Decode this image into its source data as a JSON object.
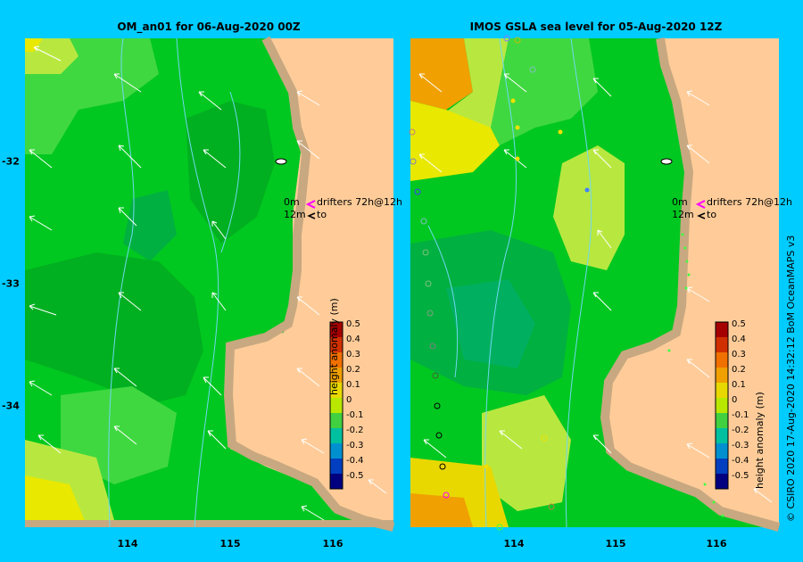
{
  "panels": [
    {
      "title": "OM_an01  for 06-Aug-2020 00Z"
    },
    {
      "title": "IMOS GSLA sea level  for 05-Aug-2020 12Z"
    }
  ],
  "axes": {
    "lon_ticks": [
      "114",
      "115",
      "116"
    ],
    "lat_ticks": [
      "-32",
      "-33",
      "-34"
    ]
  },
  "drifter_legend": {
    "line1_left": "0m",
    "line1_right": "drifters 72h@12h",
    "line2_left": "12m",
    "line2_right": "to"
  },
  "colorbar": {
    "label": "height anomaly (m)",
    "ticks": [
      "0.5",
      "0.4",
      "0.3",
      "0.2",
      "0.1",
      "0",
      "-0.1",
      "-0.2",
      "-0.3",
      "-0.4",
      "-0.5"
    ],
    "colors": [
      "#a50000",
      "#d03000",
      "#f07000",
      "#f0a000",
      "#e8d800",
      "#b8e800",
      "#40d040",
      "#00c0a0",
      "#0090d0",
      "#0040c0",
      "#000080"
    ]
  },
  "colors": {
    "land": "#ffcc99",
    "coast": "#c8a880",
    "background": "#00ccff"
  },
  "copyright": "© CSIRO 2020   17-Aug-2020 14:32:12 BoM OceanMAPS v3"
}
